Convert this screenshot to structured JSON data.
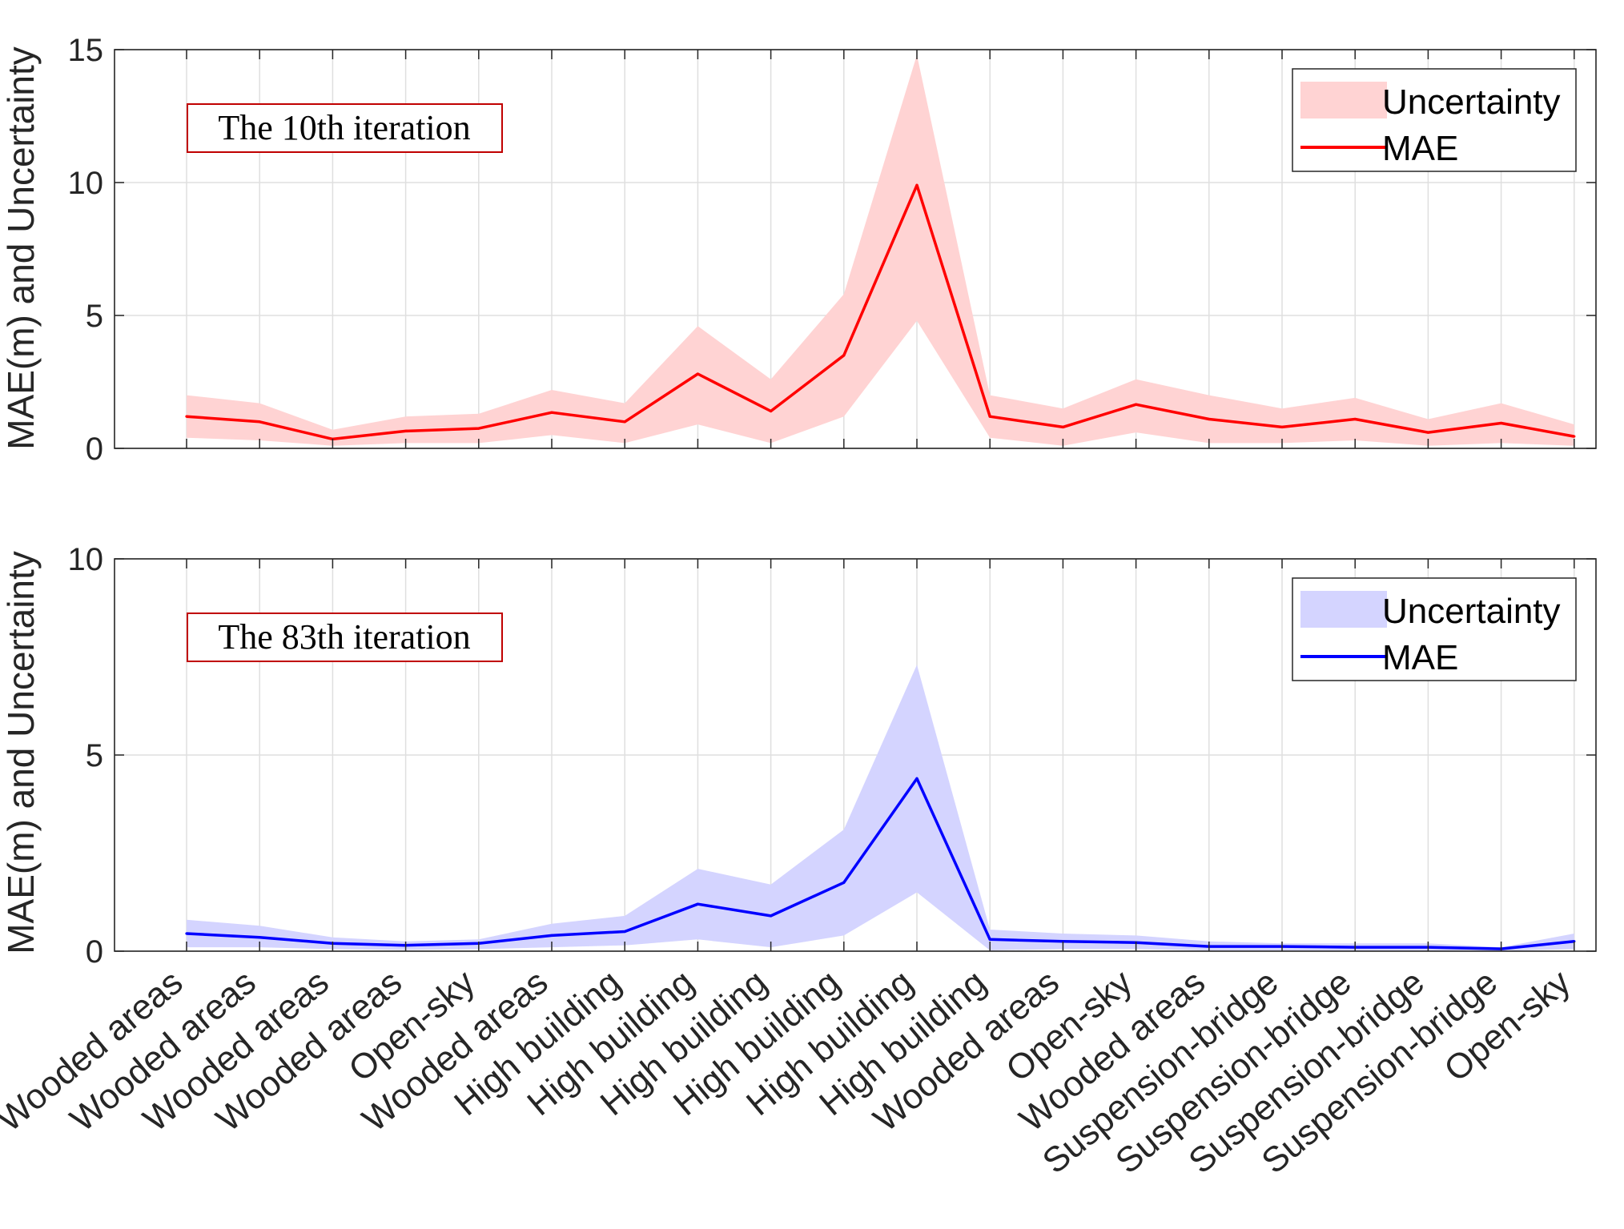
{
  "chart_data": {
    "type": "line",
    "categories": [
      "Wooded areas",
      "Wooded areas",
      "Wooded areas",
      "Wooded areas",
      "Open-sky",
      "Wooded areas",
      "High building",
      "High building",
      "High building",
      "High building",
      "High building",
      "High building",
      "Wooded areas",
      "Open-sky",
      "Wooded areas",
      "Suspension-bridge",
      "Suspension-bridge",
      "Suspension-bridge",
      "Suspension-bridge",
      "Open-sky"
    ],
    "ylabel": "MAE(m) and Uncertainty",
    "subplots": [
      {
        "annotation": "The 10th iteration",
        "ylim": [
          0,
          15
        ],
        "yticks": [
          0,
          5,
          10,
          15
        ],
        "grid": true,
        "legend_position": "top-right",
        "color": "#ff0000",
        "band_color": "#ffd3d3",
        "series": [
          {
            "name": "Uncertainty",
            "kind": "band",
            "upper": [
              2.0,
              1.7,
              0.7,
              1.2,
              1.3,
              2.2,
              1.7,
              4.6,
              2.6,
              5.8,
              14.8,
              2.0,
              1.5,
              2.6,
              2.0,
              1.5,
              1.9,
              1.1,
              1.7,
              0.9
            ],
            "lower": [
              0.4,
              0.3,
              0.1,
              0.2,
              0.2,
              0.5,
              0.2,
              0.9,
              0.2,
              1.2,
              4.8,
              0.4,
              0.1,
              0.6,
              0.2,
              0.2,
              0.3,
              0.1,
              0.2,
              0.1
            ]
          },
          {
            "name": "MAE",
            "kind": "line",
            "values": [
              1.2,
              1.0,
              0.35,
              0.65,
              0.75,
              1.35,
              1.0,
              2.8,
              1.4,
              3.5,
              9.9,
              1.2,
              0.8,
              1.65,
              1.1,
              0.8,
              1.1,
              0.6,
              0.95,
              0.45
            ]
          }
        ]
      },
      {
        "annotation": "The 83th iteration",
        "ylim": [
          0,
          10
        ],
        "yticks": [
          0,
          5,
          10
        ],
        "grid": true,
        "legend_position": "top-right",
        "color": "#0000ff",
        "band_color": "#d4d4ff",
        "series": [
          {
            "name": "Uncertainty",
            "kind": "band",
            "upper": [
              0.8,
              0.65,
              0.35,
              0.25,
              0.3,
              0.7,
              0.9,
              2.1,
              1.7,
              3.1,
              7.3,
              0.55,
              0.45,
              0.4,
              0.25,
              0.2,
              0.2,
              0.2,
              0.1,
              0.45
            ],
            "lower": [
              0.1,
              0.1,
              0.05,
              0.03,
              0.05,
              0.1,
              0.15,
              0.3,
              0.1,
              0.4,
              1.5,
              0.02,
              0.05,
              0.05,
              0.02,
              0.02,
              0.02,
              0.02,
              0.01,
              0.05
            ]
          },
          {
            "name": "MAE",
            "kind": "line",
            "values": [
              0.45,
              0.35,
              0.2,
              0.15,
              0.2,
              0.4,
              0.5,
              1.2,
              0.9,
              1.75,
              4.4,
              0.3,
              0.25,
              0.22,
              0.12,
              0.12,
              0.1,
              0.1,
              0.06,
              0.25
            ]
          }
        ]
      }
    ]
  }
}
